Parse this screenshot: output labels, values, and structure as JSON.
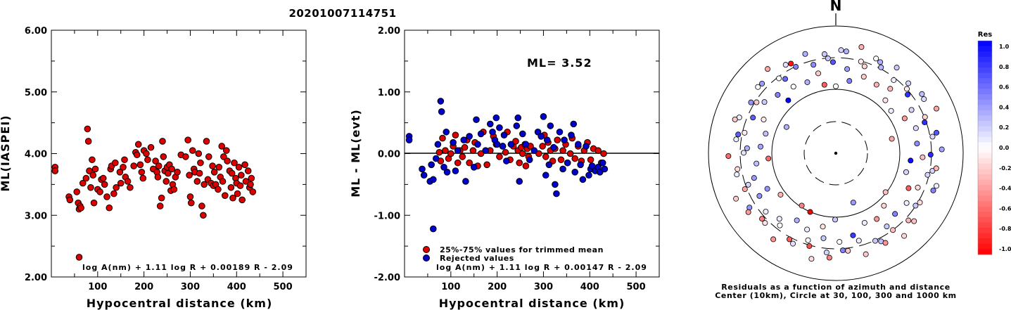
{
  "title": "20201007114751",
  "colors": {
    "accepted": "#dd0000",
    "rejected": "#0000cc",
    "positive_residual": "#0000ff",
    "negative_residual": "#ff0000"
  },
  "panel1": {
    "ylabel": "ML(IASPEI)",
    "xlabel": "Hypocentral distance (km)",
    "formula": "log A(nm) + 1.11 log R + 0.00189 R - 2.09",
    "yticks": [
      "6.00",
      "5.00",
      "4.00",
      "3.00",
      "2.00"
    ],
    "xticks": [
      "100",
      "200",
      "300",
      "400",
      "500"
    ]
  },
  "panel2": {
    "ylabel": "ML - ML(evt)",
    "xlabel": "Hypocentral distance (km)",
    "formula": "log A(nm) + 1.11 log R + 0.00147 R - 2.09",
    "ml_text": "ML= 3.52",
    "legend_accepted": "25%-75% values for trimmed mean",
    "legend_rejected": "Rejected values",
    "yticks": [
      "2.00",
      "1.00",
      "0.00",
      "-1.00",
      "-2.00"
    ],
    "xticks": [
      "100",
      "200",
      "300",
      "400",
      "500"
    ]
  },
  "panel3": {
    "north": "N",
    "caption1": "Residuals as a function of azimuth and distance",
    "caption2": "Center (10km), Circle at 30, 100, 300 and 1000 km",
    "colorbar_title": "Res",
    "colorbar_ticks": [
      "1.0",
      "0.8",
      "0.6",
      "0.4",
      "0.2",
      "0.0",
      "-0.2",
      "-0.4",
      "-0.6",
      "-0.8",
      "-1.0"
    ]
  },
  "chart_data": [
    {
      "type": "scatter",
      "title": "20201007114751",
      "xlabel": "Hypocentral distance (km)",
      "ylabel": "ML(IASPEI)",
      "xlim": [
        0,
        550
      ],
      "ylim": [
        2.0,
        6.0
      ],
      "series": [
        {
          "x": [
            8,
            8,
            38,
            40,
            55,
            58,
            60,
            62,
            64,
            68,
            75,
            78,
            80,
            82,
            85,
            88,
            90,
            92,
            95,
            100,
            105,
            108,
            112,
            115,
            120,
            125,
            128,
            130,
            135,
            138,
            140,
            148,
            150,
            155,
            158,
            160,
            165,
            170,
            178,
            182,
            185,
            188,
            192,
            195,
            198,
            200,
            205,
            208,
            215,
            220,
            225,
            228,
            230,
            232,
            235,
            238,
            240,
            242,
            245,
            248,
            250,
            252,
            255,
            258,
            260,
            262,
            265,
            268,
            272,
            280,
            290,
            295,
            298,
            300,
            302,
            305,
            308,
            310,
            315,
            318,
            320,
            322,
            325,
            328,
            330,
            335,
            338,
            340,
            345,
            348,
            350,
            352,
            355,
            360,
            362,
            365,
            368,
            370,
            372,
            375,
            378,
            380,
            385,
            388,
            390,
            392,
            395,
            398,
            400,
            402,
            405,
            408,
            410,
            412,
            418,
            420,
            425,
            428,
            430,
            432,
            435,
            60
          ],
          "y": [
            3.78,
            3.72,
            3.3,
            3.25,
            3.38,
            3.2,
            3.1,
            3.15,
            3.12,
            3.52,
            3.6,
            4.4,
            4.2,
            3.72,
            3.45,
            3.9,
            3.65,
            3.2,
            3.75,
            3.42,
            3.38,
            3.58,
            3.6,
            3.5,
            3.3,
            3.12,
            3.75,
            3.8,
            3.35,
            3.85,
            3.45,
            3.7,
            3.52,
            3.78,
            3.9,
            3.62,
            3.55,
            3.45,
            3.8,
            4.02,
            3.98,
            4.15,
            3.82,
            3.7,
            3.6,
            4.05,
            4.0,
            3.9,
            4.1,
            3.75,
            3.88,
            3.7,
            3.62,
            3.8,
            3.15,
            3.28,
            4.2,
            3.95,
            3.72,
            3.55,
            3.78,
            3.68,
            3.82,
            3.4,
            3.75,
            3.5,
            3.42,
            3.62,
            3.7,
            3.98,
            3.95,
            4.22,
            3.65,
            3.3,
            3.2,
            4.05,
            3.75,
            3.7,
            3.55,
            4.0,
            3.68,
            3.85,
            3.15,
            3.0,
            3.5,
            4.2,
            3.58,
            3.95,
            3.52,
            3.8,
            3.48,
            3.7,
            3.5,
            3.42,
            3.78,
            3.62,
            4.12,
            3.55,
            3.95,
            3.32,
            4.05,
            3.88,
            3.72,
            3.45,
            3.68,
            3.28,
            3.85,
            3.6,
            3.52,
            3.35,
            3.78,
            3.48,
            3.65,
            3.25,
            3.82,
            3.55,
            3.72,
            3.45,
            3.5,
            3.6,
            3.38,
            2.32
          ]
        }
      ]
    },
    {
      "type": "scatter",
      "xlabel": "Hypocentral distance (km)",
      "ylabel": "ML - ML(evt)",
      "xlim": [
        0,
        550
      ],
      "ylim": [
        -2.0,
        2.0
      ],
      "series": [
        {
          "name": "25%-75% values for trimmed mean",
          "x": [
            75,
            78,
            82,
            88,
            95,
            100,
            105,
            110,
            115,
            120,
            125,
            130,
            135,
            140,
            148,
            152,
            158,
            165,
            170,
            178,
            185,
            192,
            198,
            205,
            212,
            218,
            222,
            228,
            235,
            240,
            245,
            248,
            252,
            255,
            260,
            262,
            265,
            268,
            272,
            290,
            298,
            302,
            305,
            310,
            315,
            320,
            325,
            330,
            338,
            342,
            348,
            352,
            358,
            362,
            368,
            375,
            382,
            388,
            395,
            402,
            408,
            418,
            425,
            430
          ],
          "y": [
            0.02,
            -0.12,
            0.25,
            0.05,
            -0.08,
            0.0,
            0.12,
            0.3,
            -0.15,
            0.05,
            -0.05,
            0.1,
            0.22,
            -0.15,
            0.05,
            0.18,
            -0.2,
            0.0,
            0.35,
            -0.18,
            0.05,
            0.28,
            0.15,
            -0.05,
            0.12,
            0.02,
            0.35,
            -0.1,
            0.12,
            0.2,
            0.05,
            -0.15,
            0.1,
            0.0,
            0.15,
            -0.2,
            0.08,
            -0.05,
            0.12,
            0.0,
            0.12,
            0.3,
            -0.05,
            0.18,
            0.05,
            -0.12,
            0.08,
            0.22,
            -0.1,
            0.05,
            0.15,
            -0.15,
            0.0,
            0.25,
            -0.08,
            0.12,
            -0.12,
            0.05,
            0.18,
            -0.1,
            0.08,
            0.05,
            -0.15,
            0.0
          ]
        },
        {
          "name": "Rejected values",
          "x": [
            10,
            10,
            38,
            42,
            55,
            58,
            62,
            68,
            72,
            78,
            80,
            85,
            90,
            92,
            105,
            110,
            115,
            128,
            132,
            140,
            150,
            155,
            158,
            165,
            175,
            185,
            190,
            195,
            198,
            200,
            205,
            212,
            215,
            220,
            230,
            242,
            245,
            248,
            255,
            262,
            270,
            280,
            288,
            295,
            300,
            305,
            308,
            312,
            315,
            322,
            325,
            328,
            335,
            342,
            345,
            352,
            360,
            365,
            368,
            375,
            380,
            385,
            392,
            398,
            402,
            405,
            412,
            418,
            422,
            428,
            432,
            62
          ],
          "y": [
            0.28,
            0.22,
            -0.25,
            -0.35,
            -0.45,
            -0.18,
            -0.42,
            -0.08,
            0.15,
            0.85,
            0.68,
            -0.22,
            0.35,
            -0.3,
            0.18,
            -0.28,
            0.05,
            0.22,
            -0.45,
            0.28,
            -0.22,
            0.55,
            0.15,
            0.32,
            0.05,
            0.48,
            0.35,
            0.22,
            0.58,
            0.15,
            0.42,
            0.12,
            0.3,
            -0.12,
            0.15,
            0.45,
            0.58,
            -0.45,
            0.32,
            0.15,
            -0.1,
            0.05,
            0.35,
            0.28,
            0.6,
            -0.35,
            0.22,
            -0.18,
            0.45,
            0.1,
            -0.5,
            -0.65,
            0.35,
            -0.25,
            0.22,
            -0.15,
            0.3,
            0.48,
            -0.3,
            0.15,
            -0.18,
            -0.42,
            0.12,
            -0.35,
            -0.25,
            -0.2,
            -0.28,
            -0.22,
            -0.3,
            -0.15,
            -0.25,
            -1.22
          ]
        }
      ],
      "annotation": "ML= 3.52"
    }
  ]
}
